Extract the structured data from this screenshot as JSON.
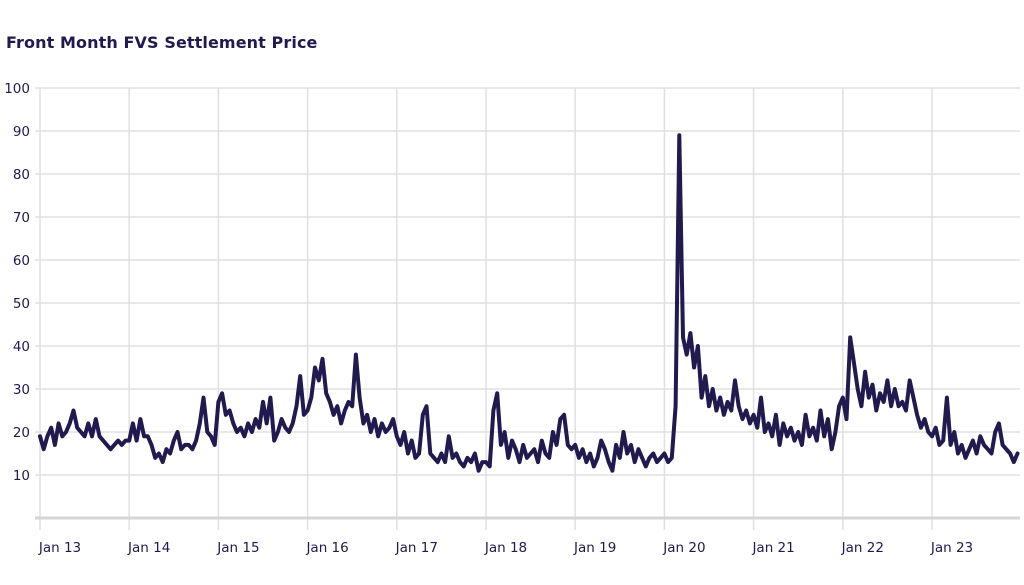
{
  "chart_data": {
    "type": "line",
    "title": "Front Month FVS Settlement Price",
    "xlabel": "",
    "ylabel": "",
    "ylim": [
      0,
      100
    ],
    "yticks": [
      "10",
      "20",
      "30",
      "40",
      "50",
      "60",
      "70",
      "80",
      "90",
      "100"
    ],
    "ytick_values": [
      10,
      20,
      30,
      40,
      50,
      60,
      70,
      80,
      90,
      100
    ],
    "xticks": [
      "Jan 13",
      "Jan 14",
      "Jan 15",
      "Jan 16",
      "Jan 17",
      "Jan 18",
      "Jan 19",
      "Jan 20",
      "Jan 21",
      "Jan 22",
      "Jan 23"
    ],
    "xtick_years": [
      2013,
      2014,
      2015,
      2016,
      2017,
      2018,
      2019,
      2020,
      2021,
      2022,
      2023
    ],
    "x_start_year": 2013,
    "x_step_years": 0.041667,
    "grid": true,
    "line_color": "#201a4f",
    "series": [
      {
        "name": "Front Month FVS Settlement Price",
        "values": [
          19,
          16,
          19,
          21,
          17,
          22,
          19,
          20,
          22,
          25,
          21,
          20,
          19,
          22,
          19,
          23,
          19,
          18,
          17,
          16,
          17,
          18,
          17,
          18,
          18,
          22,
          18,
          23,
          19,
          19,
          17,
          14,
          15,
          13,
          16,
          15,
          18,
          20,
          16,
          17,
          17,
          16,
          18,
          22,
          28,
          20,
          19,
          17,
          27,
          29,
          24,
          25,
          22,
          20,
          21,
          19,
          22,
          20,
          23,
          21,
          27,
          22,
          28,
          18,
          20,
          23,
          21,
          20,
          22,
          26,
          33,
          24,
          25,
          28,
          35,
          32,
          37,
          29,
          27,
          24,
          26,
          22,
          25,
          27,
          26,
          38,
          28,
          22,
          24,
          20,
          23,
          19,
          22,
          20,
          21,
          23,
          19,
          17,
          20,
          15,
          18,
          14,
          15,
          24,
          26,
          15,
          14,
          13,
          15,
          13,
          19,
          14,
          15,
          13,
          12,
          14,
          13,
          15,
          11,
          13,
          13,
          12,
          25,
          29,
          17,
          20,
          14,
          18,
          16,
          13,
          17,
          14,
          15,
          16,
          13,
          18,
          15,
          14,
          20,
          17,
          23,
          24,
          17,
          16,
          17,
          14,
          16,
          13,
          15,
          12,
          14,
          18,
          16,
          13,
          11,
          17,
          14,
          20,
          15,
          17,
          13,
          16,
          14,
          12,
          14,
          15,
          13,
          14,
          15,
          13,
          14,
          26,
          89,
          42,
          38,
          43,
          35,
          40,
          28,
          33,
          26,
          30,
          25,
          28,
          24,
          27,
          25,
          32,
          26,
          23,
          25,
          22,
          24,
          21,
          28,
          20,
          22,
          19,
          24,
          17,
          22,
          19,
          21,
          18,
          20,
          17,
          24,
          19,
          21,
          18,
          25,
          19,
          23,
          16,
          20,
          26,
          28,
          23,
          42,
          36,
          30,
          26,
          34,
          28,
          31,
          25,
          29,
          27,
          32,
          26,
          30,
          26,
          27,
          25,
          32,
          28,
          24,
          21,
          23,
          20,
          19,
          21,
          17,
          18,
          28,
          17,
          20,
          15,
          17,
          14,
          16,
          18,
          15,
          19,
          17,
          16,
          15,
          20,
          22,
          17,
          16,
          15,
          13,
          15
        ]
      }
    ]
  }
}
